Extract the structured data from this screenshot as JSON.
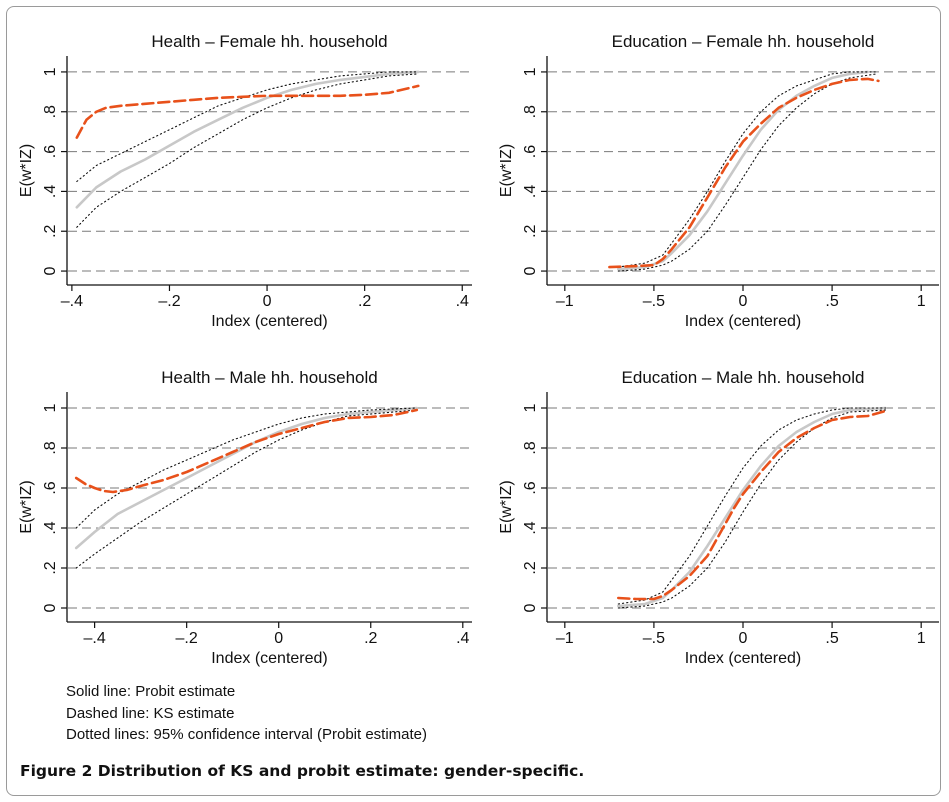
{
  "figure": {
    "caption": "Figure 2 Distribution of KS and probit estimate: gender-specific.",
    "notes": [
      "Solid line: Probit estimate",
      "Dashed line: KS estimate",
      "Dotted lines: 95% confidence interval (Probit estimate)"
    ]
  },
  "colors": {
    "probit": "#c8c8c8",
    "ks": "#e8511b",
    "ci": "#111111",
    "grid": "#7a7a7a"
  },
  "chart_data": [
    {
      "type": "line",
      "title": "Health – Female hh. household",
      "xlabel": "Index (centered)",
      "ylabel": "E(w*IZ)",
      "xlim": [
        -0.41,
        0.42
      ],
      "ylim": [
        -0.07,
        1.08
      ],
      "xticks": [
        -0.4,
        -0.2,
        0,
        0.2,
        0.4
      ],
      "xtick_labels": [
        "–.4",
        "–.2",
        "0",
        ".2",
        ".4"
      ],
      "yticks": [
        0,
        0.2,
        0.4,
        0.6,
        0.8,
        1
      ],
      "ytick_labels": [
        "0",
        ".2",
        ".4",
        ".6",
        ".8",
        "1"
      ],
      "grid": true,
      "series": [
        {
          "style": "probit",
          "x": [
            -0.39,
            -0.35,
            -0.3,
            -0.25,
            -0.2,
            -0.15,
            -0.1,
            -0.05,
            0,
            0.05,
            0.1,
            0.15,
            0.2,
            0.25,
            0.31
          ],
          "y": [
            0.32,
            0.42,
            0.5,
            0.56,
            0.63,
            0.7,
            0.76,
            0.82,
            0.87,
            0.91,
            0.94,
            0.96,
            0.975,
            0.99,
            1.0
          ]
        },
        {
          "style": "ks",
          "x": [
            -0.39,
            -0.37,
            -0.35,
            -0.33,
            -0.3,
            -0.25,
            -0.2,
            -0.15,
            -0.1,
            -0.05,
            0,
            0.05,
            0.1,
            0.15,
            0.2,
            0.25,
            0.31
          ],
          "y": [
            0.67,
            0.76,
            0.8,
            0.82,
            0.83,
            0.84,
            0.85,
            0.86,
            0.87,
            0.875,
            0.88,
            0.88,
            0.88,
            0.88,
            0.885,
            0.895,
            0.93
          ]
        },
        {
          "style": "ci",
          "x": [
            -0.39,
            -0.35,
            -0.3,
            -0.25,
            -0.2,
            -0.15,
            -0.1,
            -0.05,
            0,
            0.05,
            0.1,
            0.15,
            0.2,
            0.25,
            0.31
          ],
          "y": [
            0.45,
            0.53,
            0.59,
            0.65,
            0.71,
            0.77,
            0.83,
            0.87,
            0.91,
            0.94,
            0.96,
            0.98,
            0.99,
            1.0,
            1.0
          ]
        },
        {
          "style": "ci",
          "x": [
            -0.39,
            -0.35,
            -0.3,
            -0.25,
            -0.2,
            -0.15,
            -0.1,
            -0.05,
            0,
            0.05,
            0.1,
            0.15,
            0.2,
            0.25,
            0.31
          ],
          "y": [
            0.22,
            0.32,
            0.4,
            0.47,
            0.54,
            0.62,
            0.69,
            0.76,
            0.82,
            0.87,
            0.91,
            0.94,
            0.96,
            0.98,
            0.99
          ]
        }
      ]
    },
    {
      "type": "line",
      "title": "Education – Female hh. household",
      "xlabel": "Index (centered)",
      "ylabel": "E(w*IZ)",
      "xlim": [
        -1.1,
        1.1
      ],
      "ylim": [
        -0.07,
        1.08
      ],
      "xticks": [
        -1,
        -0.5,
        0,
        0.5,
        1
      ],
      "xtick_labels": [
        "–1",
        "–.5",
        "0",
        ".5",
        "1"
      ],
      "yticks": [
        0,
        0.2,
        0.4,
        0.6,
        0.8,
        1
      ],
      "ytick_labels": [
        "0",
        ".2",
        ".4",
        ".6",
        ".8",
        "1"
      ],
      "grid": true,
      "series": [
        {
          "style": "probit",
          "x": [
            -0.7,
            -0.55,
            -0.45,
            -0.4,
            -0.3,
            -0.2,
            -0.1,
            0,
            0.1,
            0.2,
            0.3,
            0.4,
            0.5,
            0.6,
            0.7
          ],
          "y": [
            0.01,
            0.02,
            0.05,
            0.09,
            0.18,
            0.3,
            0.44,
            0.58,
            0.71,
            0.81,
            0.88,
            0.93,
            0.97,
            0.99,
            1.0
          ]
        },
        {
          "style": "ks",
          "x": [
            -0.75,
            -0.6,
            -0.5,
            -0.45,
            -0.4,
            -0.3,
            -0.2,
            -0.1,
            0,
            0.1,
            0.2,
            0.3,
            0.4,
            0.5,
            0.6,
            0.7,
            0.76
          ],
          "y": [
            0.02,
            0.025,
            0.03,
            0.06,
            0.11,
            0.22,
            0.37,
            0.52,
            0.65,
            0.74,
            0.82,
            0.87,
            0.91,
            0.94,
            0.96,
            0.965,
            0.955
          ]
        },
        {
          "style": "ci",
          "x": [
            -0.7,
            -0.55,
            -0.45,
            -0.4,
            -0.3,
            -0.2,
            -0.1,
            0,
            0.1,
            0.2,
            0.3,
            0.4,
            0.5,
            0.6,
            0.75
          ],
          "y": [
            0.02,
            0.04,
            0.08,
            0.14,
            0.26,
            0.4,
            0.55,
            0.69,
            0.8,
            0.88,
            0.93,
            0.96,
            0.99,
            1.0,
            1.0
          ]
        },
        {
          "style": "ci",
          "x": [
            -0.7,
            -0.55,
            -0.45,
            -0.4,
            -0.3,
            -0.2,
            -0.1,
            0,
            0.1,
            0.2,
            0.3,
            0.4,
            0.5,
            0.6,
            0.75
          ],
          "y": [
            0.0,
            0.01,
            0.03,
            0.05,
            0.11,
            0.2,
            0.33,
            0.47,
            0.61,
            0.73,
            0.82,
            0.89,
            0.94,
            0.97,
            0.99
          ]
        }
      ]
    },
    {
      "type": "line",
      "title": "Health – Male hh. household",
      "xlabel": "Index (centered)",
      "ylabel": "E(w*IZ)",
      "xlim": [
        -0.46,
        0.42
      ],
      "ylim": [
        -0.07,
        1.08
      ],
      "xticks": [
        -0.4,
        -0.2,
        0,
        0.2,
        0.4
      ],
      "xtick_labels": [
        "–.4",
        "–.2",
        "0",
        ".2",
        ".4"
      ],
      "yticks": [
        0,
        0.2,
        0.4,
        0.6,
        0.8,
        1
      ],
      "ytick_labels": [
        "0",
        ".2",
        ".4",
        ".6",
        ".8",
        "1"
      ],
      "grid": true,
      "series": [
        {
          "style": "probit",
          "x": [
            -0.44,
            -0.4,
            -0.35,
            -0.3,
            -0.25,
            -0.2,
            -0.15,
            -0.1,
            -0.05,
            0,
            0.05,
            0.1,
            0.15,
            0.2,
            0.25,
            0.3
          ],
          "y": [
            0.3,
            0.38,
            0.47,
            0.53,
            0.59,
            0.65,
            0.71,
            0.77,
            0.83,
            0.88,
            0.92,
            0.95,
            0.97,
            0.98,
            0.99,
            1.0
          ]
        },
        {
          "style": "ks",
          "x": [
            -0.44,
            -0.42,
            -0.4,
            -0.38,
            -0.36,
            -0.33,
            -0.3,
            -0.25,
            -0.2,
            -0.15,
            -0.1,
            -0.05,
            0,
            0.05,
            0.1,
            0.15,
            0.2,
            0.25,
            0.3
          ],
          "y": [
            0.65,
            0.62,
            0.6,
            0.585,
            0.58,
            0.59,
            0.61,
            0.64,
            0.68,
            0.73,
            0.78,
            0.83,
            0.87,
            0.9,
            0.93,
            0.95,
            0.955,
            0.965,
            0.99
          ]
        },
        {
          "style": "ci",
          "x": [
            -0.44,
            -0.4,
            -0.35,
            -0.3,
            -0.25,
            -0.2,
            -0.15,
            -0.1,
            -0.05,
            0,
            0.05,
            0.1,
            0.15,
            0.2,
            0.3
          ],
          "y": [
            0.4,
            0.49,
            0.57,
            0.63,
            0.69,
            0.74,
            0.79,
            0.84,
            0.88,
            0.92,
            0.95,
            0.97,
            0.98,
            0.99,
            1.0
          ]
        },
        {
          "style": "ci",
          "x": [
            -0.44,
            -0.4,
            -0.35,
            -0.3,
            -0.25,
            -0.2,
            -0.15,
            -0.1,
            -0.05,
            0,
            0.05,
            0.1,
            0.15,
            0.2,
            0.3
          ],
          "y": [
            0.2,
            0.27,
            0.35,
            0.43,
            0.5,
            0.57,
            0.64,
            0.71,
            0.78,
            0.84,
            0.89,
            0.93,
            0.96,
            0.97,
            0.99
          ]
        }
      ]
    },
    {
      "type": "line",
      "title": "Education – Male hh. household",
      "xlabel": "Index (centered)",
      "ylabel": "E(w*IZ)",
      "xlim": [
        -1.1,
        1.1
      ],
      "ylim": [
        -0.07,
        1.08
      ],
      "xticks": [
        -1,
        -0.5,
        0,
        0.5,
        1
      ],
      "xtick_labels": [
        "–1",
        "–.5",
        "0",
        ".5",
        "1"
      ],
      "yticks": [
        0,
        0.2,
        0.4,
        0.6,
        0.8,
        1
      ],
      "ytick_labels": [
        "0",
        ".2",
        ".4",
        ".6",
        ".8",
        "1"
      ],
      "grid": true,
      "series": [
        {
          "style": "probit",
          "x": [
            -0.7,
            -0.55,
            -0.45,
            -0.4,
            -0.3,
            -0.2,
            -0.1,
            0,
            0.1,
            0.2,
            0.3,
            0.4,
            0.5,
            0.6,
            0.8
          ],
          "y": [
            0.01,
            0.02,
            0.05,
            0.09,
            0.18,
            0.31,
            0.45,
            0.59,
            0.71,
            0.81,
            0.88,
            0.93,
            0.97,
            0.99,
            1.0
          ]
        },
        {
          "style": "ks",
          "x": [
            -0.7,
            -0.6,
            -0.5,
            -0.45,
            -0.4,
            -0.3,
            -0.2,
            -0.15,
            -0.1,
            -0.05,
            0,
            0.1,
            0.2,
            0.3,
            0.4,
            0.5,
            0.6,
            0.7,
            0.8
          ],
          "y": [
            0.05,
            0.045,
            0.045,
            0.06,
            0.09,
            0.16,
            0.26,
            0.34,
            0.42,
            0.5,
            0.57,
            0.68,
            0.78,
            0.85,
            0.9,
            0.94,
            0.955,
            0.96,
            0.985
          ]
        },
        {
          "style": "ci",
          "x": [
            -0.7,
            -0.55,
            -0.45,
            -0.4,
            -0.3,
            -0.2,
            -0.1,
            0,
            0.1,
            0.2,
            0.3,
            0.4,
            0.5,
            0.6,
            0.8
          ],
          "y": [
            0.02,
            0.04,
            0.08,
            0.14,
            0.26,
            0.41,
            0.56,
            0.7,
            0.81,
            0.89,
            0.94,
            0.97,
            0.99,
            1.0,
            1.0
          ]
        },
        {
          "style": "ci",
          "x": [
            -0.7,
            -0.55,
            -0.45,
            -0.4,
            -0.3,
            -0.2,
            -0.1,
            0,
            0.1,
            0.2,
            0.3,
            0.4,
            0.5,
            0.6,
            0.8
          ],
          "y": [
            0.0,
            0.01,
            0.03,
            0.05,
            0.11,
            0.2,
            0.33,
            0.48,
            0.62,
            0.74,
            0.83,
            0.9,
            0.95,
            0.98,
            0.99
          ]
        }
      ]
    }
  ]
}
